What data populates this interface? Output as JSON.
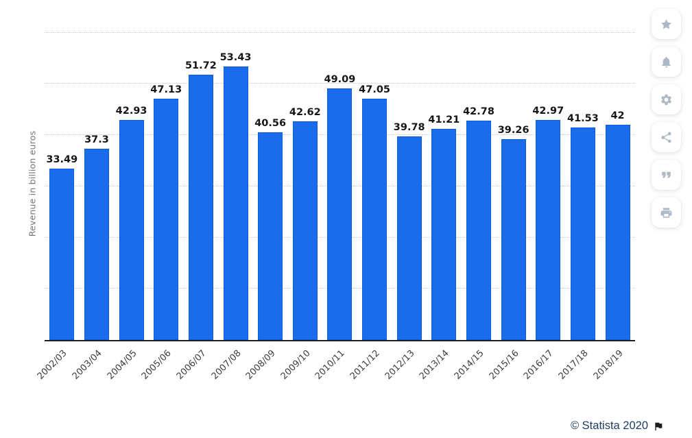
{
  "chart_data": {
    "type": "bar",
    "categories": [
      "2002/03",
      "2003/04",
      "2004/05",
      "2005/06",
      "2006/07",
      "2007/08",
      "2008/09",
      "2009/10",
      "2010/11",
      "2011/12",
      "2012/13",
      "2013/14",
      "2014/15",
      "2015/16",
      "2016/17",
      "2017/18",
      "2018/19"
    ],
    "values": [
      33.49,
      37.3,
      42.93,
      47.13,
      51.72,
      53.43,
      40.56,
      42.62,
      49.09,
      47.05,
      39.78,
      41.21,
      42.78,
      39.26,
      42.97,
      41.53,
      42
    ],
    "value_labels": [
      "33.49",
      "37.3",
      "42.93",
      "47.13",
      "51.72",
      "53.43",
      "40.56",
      "42.62",
      "49.09",
      "47.05",
      "39.78",
      "41.21",
      "42.78",
      "39.26",
      "42.97",
      "41.53",
      "42"
    ],
    "title": "",
    "xlabel": "",
    "ylabel": "Revenue in billion euros",
    "ylim": [
      0,
      60.2
    ],
    "gridlines": [
      10,
      20,
      30,
      40,
      50,
      60
    ],
    "grid_style": "dotted horizontal, no y tick labels",
    "legend": "none",
    "bar_color": "#1b6ceb",
    "bar_border_color": "#0b5ce0",
    "axis_line_color": "#1f1f1f",
    "gridline_color": "#c9c9c9"
  },
  "toolbar": {
    "icon_color": "#aeb9c8",
    "buttons": [
      {
        "name": "favorite",
        "icon": "star-icon"
      },
      {
        "name": "notifications",
        "icon": "bell-icon"
      },
      {
        "name": "settings",
        "icon": "gear-icon"
      },
      {
        "name": "share",
        "icon": "share-icon"
      },
      {
        "name": "cite",
        "icon": "quote-icon"
      },
      {
        "name": "print",
        "icon": "printer-icon"
      }
    ]
  },
  "footer": {
    "copyright": "© Statista 2020",
    "flag_icon": "flag-icon",
    "text_color": "#1b3b5f"
  }
}
